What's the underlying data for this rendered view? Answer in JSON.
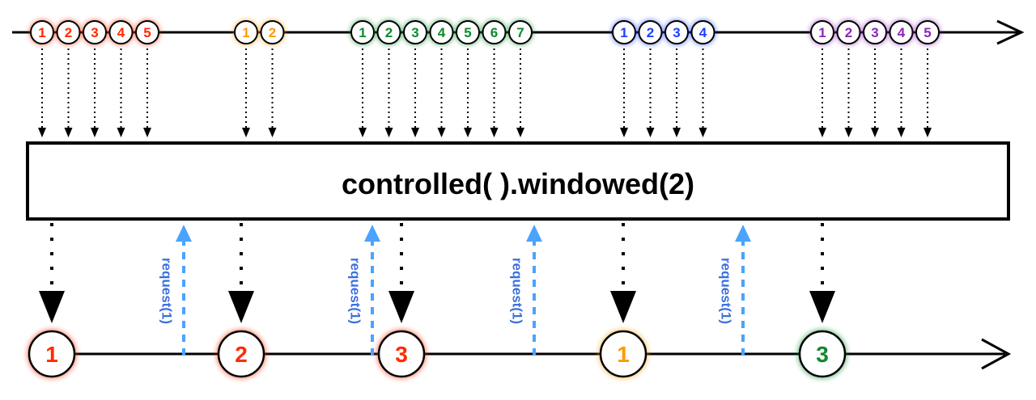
{
  "operator_label": "controlled( ).windowed(2)",
  "request_label": "request(1)",
  "colors": {
    "red": "#ff2a00",
    "orange": "#ff9900",
    "green": "#0f8a2a",
    "blue": "#1a40ff",
    "purple": "#8a28b4",
    "request": "#4aa3ff",
    "line": "#000000"
  },
  "input_groups": [
    {
      "color": "red",
      "items": [
        "1",
        "2",
        "3",
        "4",
        "5"
      ]
    },
    {
      "color": "orange",
      "items": [
        "1",
        "2"
      ]
    },
    {
      "color": "green",
      "items": [
        "1",
        "2",
        "3",
        "4",
        "5",
        "6",
        "7"
      ]
    },
    {
      "color": "blue",
      "items": [
        "1",
        "2",
        "3",
        "4"
      ]
    },
    {
      "color": "purple",
      "items": [
        "1",
        "2",
        "3",
        "4",
        "5"
      ]
    }
  ],
  "outputs": [
    {
      "label": "1",
      "color": "red"
    },
    {
      "label": "2",
      "color": "red"
    },
    {
      "label": "3",
      "color": "red"
    },
    {
      "label": "1",
      "color": "orange"
    },
    {
      "label": "3",
      "color": "green"
    }
  ],
  "requests_count": 4
}
